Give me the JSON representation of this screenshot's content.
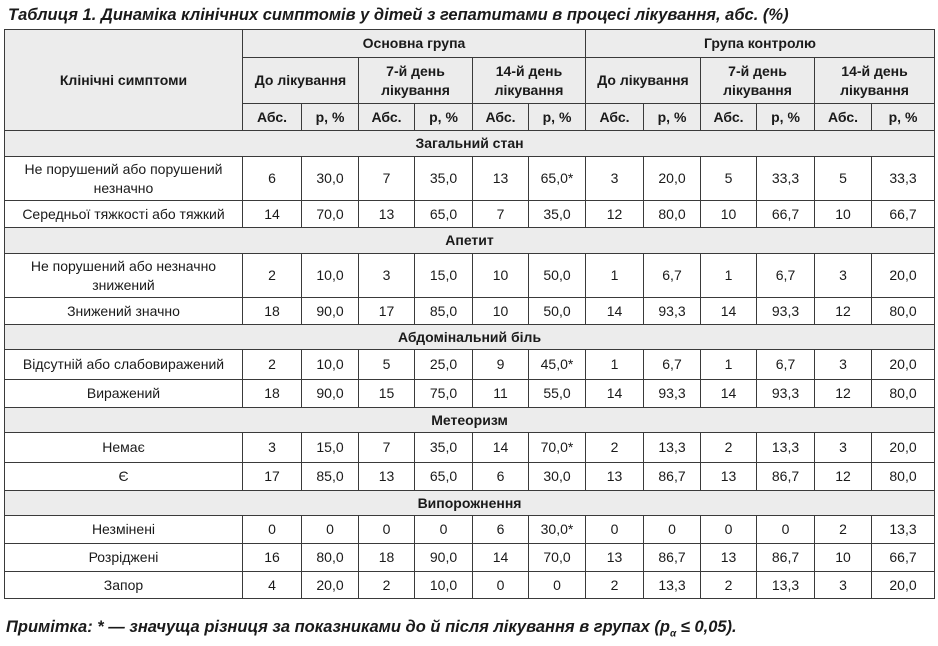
{
  "title": "Таблиця 1. Динаміка клінічних симптомів у дітей з гепатитами в процесі лікування, абс. (%)",
  "header": {
    "symptoms_label": "Клінічні симптоми",
    "group_main": "Основна група",
    "group_control": "Група контролю",
    "periods": [
      "До лікування",
      "7-й день лікування",
      "14-й день лікування"
    ],
    "abs_label": "Абс.",
    "p_label": "р, %"
  },
  "sections": [
    {
      "title": "Загальний стан",
      "rows": [
        {
          "label": "Не порушений або порушений незначно",
          "values": [
            "6",
            "30,0",
            "7",
            "35,0",
            "13",
            "65,0*",
            "3",
            "20,0",
            "5",
            "33,3",
            "5",
            "33,3"
          ]
        },
        {
          "label": "Середньої тяжкості або тяжкий",
          "values": [
            "14",
            "70,0",
            "13",
            "65,0",
            "7",
            "35,0",
            "12",
            "80,0",
            "10",
            "66,7",
            "10",
            "66,7"
          ]
        }
      ]
    },
    {
      "title": "Апетит",
      "rows": [
        {
          "label": "Не порушений або незначно знижений",
          "values": [
            "2",
            "10,0",
            "3",
            "15,0",
            "10",
            "50,0",
            "1",
            "6,7",
            "1",
            "6,7",
            "3",
            "20,0"
          ]
        },
        {
          "label": "Знижений значно",
          "values": [
            "18",
            "90,0",
            "17",
            "85,0",
            "10",
            "50,0",
            "14",
            "93,3",
            "14",
            "93,3",
            "12",
            "80,0"
          ]
        }
      ]
    },
    {
      "title": "Абдомінальний біль",
      "rows": [
        {
          "label": "Відсутній або слабовиражений",
          "values": [
            "2",
            "10,0",
            "5",
            "25,0",
            "9",
            "45,0*",
            "1",
            "6,7",
            "1",
            "6,7",
            "3",
            "20,0"
          ]
        },
        {
          "label": "Виражений",
          "values": [
            "18",
            "90,0",
            "15",
            "75,0",
            "11",
            "55,0",
            "14",
            "93,3",
            "14",
            "93,3",
            "12",
            "80,0"
          ]
        }
      ]
    },
    {
      "title": "Метеоризм",
      "rows": [
        {
          "label": "Немає",
          "values": [
            "3",
            "15,0",
            "7",
            "35,0",
            "14",
            "70,0*",
            "2",
            "13,3",
            "2",
            "13,3",
            "3",
            "20,0"
          ]
        },
        {
          "label": "Є",
          "values": [
            "17",
            "85,0",
            "13",
            "65,0",
            "6",
            "30,0",
            "13",
            "86,7",
            "13",
            "86,7",
            "12",
            "80,0"
          ]
        }
      ]
    },
    {
      "title": "Випорожнення",
      "rows": [
        {
          "label": "Незмінені",
          "values": [
            "0",
            "0",
            "0",
            "0",
            "6",
            "30,0*",
            "0",
            "0",
            "0",
            "0",
            "2",
            "13,3"
          ]
        },
        {
          "label": "Розріджені",
          "values": [
            "16",
            "80,0",
            "18",
            "90,0",
            "14",
            "70,0",
            "13",
            "86,7",
            "13",
            "86,7",
            "10",
            "66,7"
          ]
        },
        {
          "label": "Запор",
          "values": [
            "4",
            "20,0",
            "2",
            "10,0",
            "0",
            "0",
            "2",
            "13,3",
            "2",
            "13,3",
            "3",
            "20,0"
          ]
        }
      ]
    }
  ],
  "note": {
    "prefix": "Примітка: * — значуща різниця за показниками до й після лікування в групах (р",
    "sub": "α",
    "suffix": " ≤ 0,05)."
  }
}
